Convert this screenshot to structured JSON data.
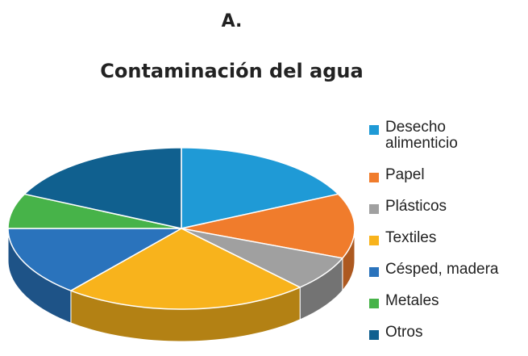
{
  "chart_data": {
    "type": "pie3d",
    "heading": "A.",
    "title": "Contaminación del agua",
    "categories": [
      "Desecho alimenticio",
      "Papel",
      "Plásticos",
      "Textiles",
      "Césped, madera",
      "Metales",
      "Otros"
    ],
    "values": [
      18,
      13,
      7,
      23,
      14,
      7,
      18
    ],
    "colors": [
      "#1f9ad6",
      "#f07c2c",
      "#a0a0a0",
      "#f8b31c",
      "#2a73bc",
      "#47b349",
      "#10608f"
    ],
    "legend": "right"
  }
}
